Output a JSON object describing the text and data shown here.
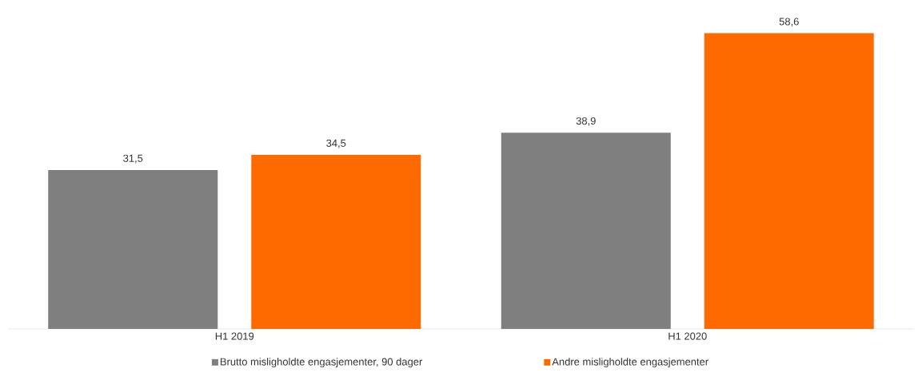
{
  "chart_data": {
    "type": "bar",
    "categories": [
      "H1 2019",
      "H1 2020"
    ],
    "series": [
      {
        "name": "Brutto misligholdte engasjementer, 90 dager",
        "color": "#7f7f7f",
        "values": [
          31.5,
          38.9
        ],
        "value_labels": [
          "31,5",
          "38,9"
        ]
      },
      {
        "name": "Andre misligholdte engasjementer",
        "color": "#ff6a00",
        "values": [
          34.5,
          58.6
        ],
        "value_labels": [
          "34,5",
          "58,6"
        ]
      }
    ],
    "legend": "bottom"
  }
}
